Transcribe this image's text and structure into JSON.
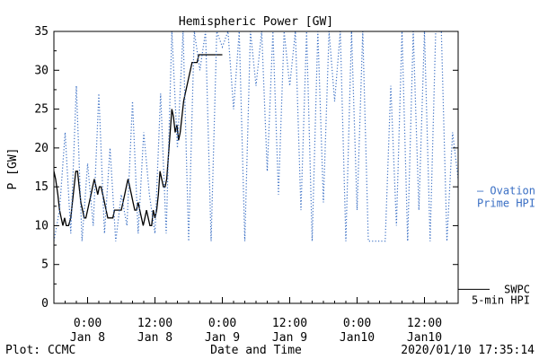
{
  "chart_data": {
    "type": "line",
    "title": "Hemispheric Power [GW]",
    "xlabel": "Date and Time",
    "ylabel": "P [GW]",
    "ylim": [
      0,
      35
    ],
    "y_ticks": [
      0,
      5,
      10,
      15,
      20,
      25,
      30,
      35
    ],
    "x_unit": "hours since 2020-01-07 18:00 UT",
    "xlim": [
      0,
      72
    ],
    "x_ticks": [
      {
        "x": 6,
        "time": "0:00",
        "date": "Jan 8"
      },
      {
        "x": 18,
        "time": "12:00",
        "date": "Jan 8"
      },
      {
        "x": 30,
        "time": "0:00",
        "date": "Jan 9"
      },
      {
        "x": 42,
        "time": "12:00",
        "date": "Jan 9"
      },
      {
        "x": 54,
        "time": "0:00",
        "date": "Jan10"
      },
      {
        "x": 66,
        "time": "12:00",
        "date": "Jan10"
      }
    ],
    "grid": false,
    "series": [
      {
        "name": "SWPC 5-min HPI",
        "legend_lines": [
          "SWPC",
          "5-min HPI"
        ],
        "color": "#000000",
        "style": "solid",
        "x": [
          0,
          0.3,
          0.7,
          1.0,
          1.3,
          1.6,
          1.9,
          2.2,
          2.6,
          3.0,
          3.3,
          3.6,
          3.9,
          4.2,
          4.5,
          4.8,
          5.1,
          5.4,
          5.7,
          6.0,
          6.3,
          6.6,
          6.9,
          7.2,
          7.5,
          7.8,
          8.1,
          8.4,
          8.7,
          9.0,
          9.3,
          9.6,
          9.9,
          10.2,
          10.5,
          10.8,
          11.1,
          11.4,
          11.7,
          12.0,
          12.3,
          12.6,
          12.9,
          13.2,
          13.5,
          13.8,
          14.1,
          14.4,
          14.7,
          15.0,
          15.3,
          15.6,
          15.9,
          16.2,
          16.5,
          16.8,
          17.1,
          17.4,
          17.7,
          18.0,
          18.3,
          18.6,
          18.9,
          19.2,
          19.5,
          19.8,
          20.1,
          20.4,
          20.7,
          21.0,
          21.3,
          21.6,
          21.9,
          22.2,
          22.5,
          22.8,
          23.1,
          23.4,
          23.7,
          24.0,
          24.3,
          24.6,
          24.9,
          25.2,
          25.5,
          25.8,
          26.1,
          26.4,
          26.7,
          27.0,
          27.3,
          27.6,
          27.9,
          28.2,
          28.5,
          28.8,
          29.1,
          29.4,
          29.7,
          30.0
        ],
        "y": [
          17,
          16,
          14,
          12,
          11,
          10,
          11,
          10,
          10,
          11,
          13,
          15,
          17,
          17,
          15,
          13,
          12,
          11,
          11,
          12,
          13,
          14,
          15,
          16,
          15,
          14,
          15,
          15,
          14,
          13,
          12,
          11,
          11,
          11,
          11,
          12,
          12,
          12,
          12,
          12,
          13,
          14,
          15,
          16,
          15,
          14,
          13,
          12,
          12,
          13,
          12,
          11,
          10,
          11,
          12,
          11,
          10,
          10,
          12,
          11,
          12,
          14,
          17,
          16,
          15,
          15,
          16,
          19,
          22,
          25,
          24,
          22,
          23,
          21,
          22,
          24,
          26,
          27,
          28,
          29,
          30,
          31,
          31,
          31,
          31,
          32,
          32,
          32,
          32,
          32,
          32,
          32,
          32,
          32,
          32,
          32,
          32,
          32,
          32,
          32
        ]
      },
      {
        "name": "Ovation Prime HPI",
        "legend_lines": [
          "— Ovation",
          "Prime HPI"
        ],
        "color": "#3a6fc4",
        "style": "dotted",
        "x": [
          0,
          1,
          2,
          3,
          4,
          5,
          6,
          7,
          8,
          9,
          10,
          11,
          12,
          13,
          14,
          15,
          16,
          17,
          18,
          19,
          20,
          21,
          22,
          23,
          24,
          25,
          26,
          27,
          28,
          29,
          30,
          31,
          32,
          33,
          34,
          35,
          36,
          37,
          38,
          39,
          40,
          41,
          42,
          43,
          44,
          45,
          46,
          47,
          48,
          49,
          50,
          51,
          52,
          53,
          54,
          55,
          56,
          57,
          58,
          59,
          60,
          61,
          62,
          63,
          64,
          65,
          66,
          67,
          68,
          69,
          70,
          71,
          72
        ],
        "y": [
          8,
          12,
          22,
          9,
          28,
          8,
          18,
          10,
          27,
          9,
          20,
          8,
          14,
          10,
          26,
          9,
          22,
          14,
          9,
          27,
          9,
          35,
          20,
          35,
          8,
          35,
          30,
          35,
          8,
          35,
          33,
          35,
          25,
          35,
          8,
          35,
          28,
          35,
          17,
          35,
          14,
          35,
          28,
          35,
          12,
          35,
          8,
          35,
          13,
          35,
          26,
          35,
          8,
          35,
          12,
          35,
          8,
          8,
          8,
          8,
          28,
          10,
          35,
          8,
          35,
          12,
          35,
          8,
          35,
          35,
          8,
          22,
          16
        ]
      }
    ],
    "footer_left": "Plot: CCMC",
    "footer_right": "2020/01/10 17:35:14"
  }
}
